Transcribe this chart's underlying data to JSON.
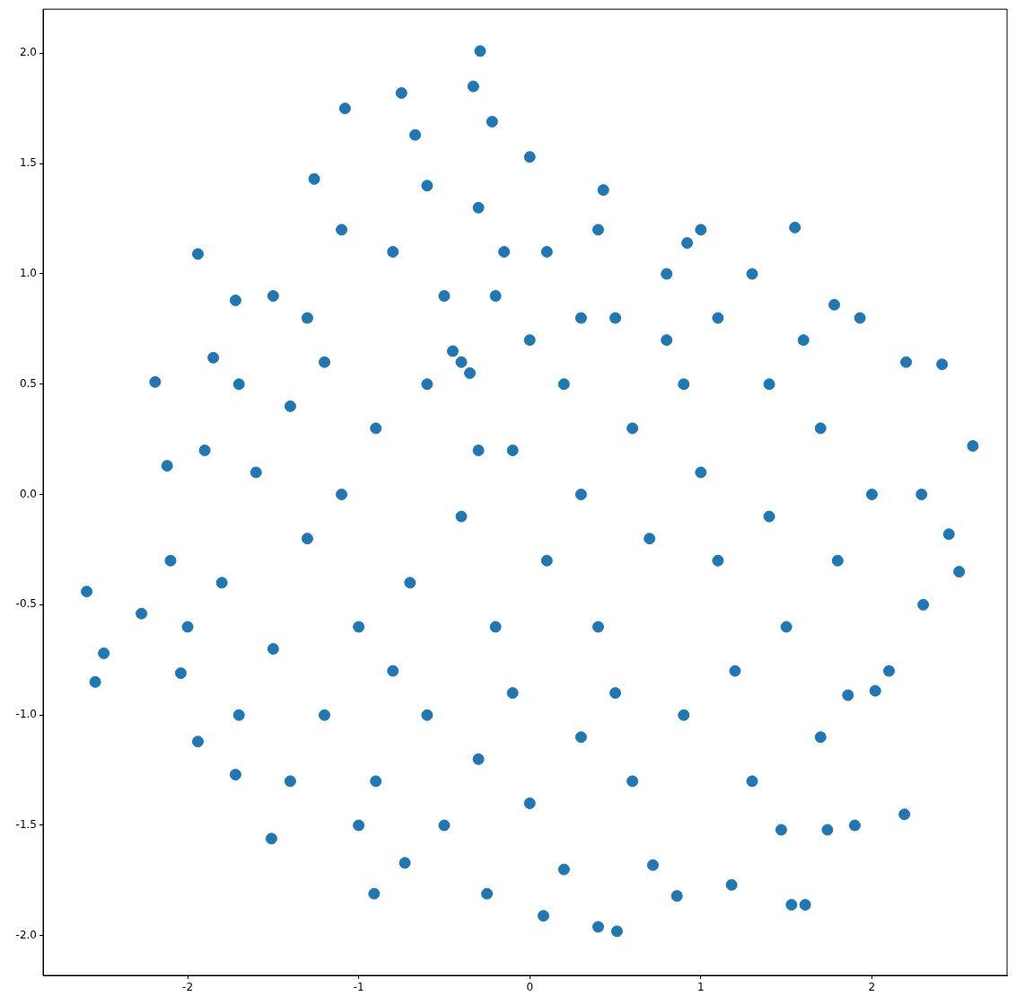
{
  "chart_data": {
    "type": "scatter",
    "color": "#1f77b4",
    "marker": "circle",
    "grid": false,
    "xlim": [
      -2.845,
      2.79
    ],
    "ylim": [
      -2.18,
      2.2
    ],
    "xticks": [
      -2,
      -1,
      0,
      1,
      2
    ],
    "yticks": [
      {
        "value": -2,
        "label": "-2.0"
      },
      {
        "value": -1.5,
        "label": "-1.5"
      },
      {
        "value": -1,
        "label": "-1.0"
      },
      {
        "value": -0.5,
        "label": "-0.5"
      },
      {
        "value": 0,
        "label": "0.0"
      },
      {
        "value": 0.5,
        "label": "0.5"
      },
      {
        "value": 1,
        "label": "1.0"
      },
      {
        "value": 1.5,
        "label": "1.5"
      },
      {
        "value": 2,
        "label": "2.0"
      }
    ],
    "x": [
      -2.59,
      -2.54,
      -2.49,
      -2.27,
      -2.19,
      -1.94,
      -1.94,
      -1.72,
      -1.08,
      -0.75,
      -0.33,
      -0.29,
      -0.22,
      0.0,
      1.55,
      2.41,
      2.59,
      2.51,
      2.45,
      2.29,
      2.19,
      1.74,
      1.61,
      1.53,
      1.18,
      0.51,
      0.4,
      0.08,
      -0.91,
      -0.25,
      -1.51,
      -1.72,
      -2.04,
      -2.12,
      -1.85,
      -1.26,
      -0.67,
      0.43,
      0.92,
      1.78,
      1.93,
      1.9,
      2.02,
      1.86,
      1.47,
      0.72,
      0.86,
      -0.73,
      -1.5,
      -1.2,
      -0.9,
      -1.6,
      -1.3,
      -1.8,
      -1.5,
      -1.2,
      -0.9,
      -0.6,
      -0.3,
      0.0,
      0.3,
      0.6,
      0.9,
      1.2,
      1.5,
      1.8,
      2.0,
      1.7,
      1.4,
      1.1,
      0.8,
      0.5,
      0.2,
      -0.1,
      -0.4,
      -0.7,
      -1.0,
      0.1,
      0.4,
      0.7,
      1.0,
      0.6,
      0.9,
      -0.5,
      -0.8,
      -1.1,
      -0.3,
      0.1,
      0.4,
      1.3,
      1.6,
      2.2,
      2.3,
      2.1,
      1.7,
      1.3,
      0.2,
      -0.5,
      -1.0,
      -1.4,
      -1.7,
      -2.0,
      -2.1,
      -1.9,
      -1.7,
      -1.4,
      -1.1,
      -0.8,
      -0.2,
      0.3,
      0.0,
      -0.2,
      -0.4,
      -0.3,
      -0.1,
      0.5,
      1.1,
      1.4,
      0.8,
      1.0,
      -0.6,
      -1.3,
      -0.6,
      0.3,
      -0.15,
      -0.45,
      -0.35
    ],
    "values": [
      -0.44,
      -0.85,
      -0.72,
      -0.54,
      0.51,
      1.09,
      -1.12,
      0.88,
      1.75,
      1.82,
      1.85,
      2.01,
      1.69,
      1.53,
      1.21,
      0.59,
      0.22,
      -0.35,
      -0.18,
      0.0,
      -1.45,
      -1.52,
      -1.86,
      -1.86,
      -1.77,
      -1.98,
      -1.96,
      -1.91,
      -1.81,
      -1.81,
      -1.56,
      -1.27,
      -0.81,
      0.13,
      0.62,
      1.43,
      1.63,
      1.38,
      1.14,
      0.86,
      0.8,
      -1.5,
      -0.89,
      -0.91,
      -1.52,
      -1.68,
      -1.82,
      -1.67,
      0.9,
      0.6,
      0.3,
      0.1,
      -0.2,
      -0.4,
      -0.7,
      -1.0,
      -1.3,
      -1.0,
      -1.2,
      -1.4,
      -1.1,
      -1.3,
      -1.0,
      -0.8,
      -0.6,
      -0.3,
      0.0,
      0.3,
      0.5,
      0.8,
      1.0,
      0.8,
      0.5,
      0.2,
      -0.1,
      -0.4,
      -0.6,
      -0.3,
      -0.6,
      -0.2,
      0.1,
      0.3,
      0.5,
      0.9,
      1.1,
      1.2,
      1.3,
      1.1,
      1.2,
      1.0,
      0.7,
      0.6,
      -0.5,
      -0.8,
      -1.1,
      -1.3,
      -1.7,
      -1.5,
      -1.5,
      -1.3,
      -1.0,
      -0.6,
      -0.3,
      0.2,
      0.5,
      0.4,
      0.0,
      -0.8,
      -0.6,
      0.0,
      0.7,
      0.9,
      0.6,
      0.2,
      -0.9,
      -0.9,
      -0.3,
      -0.1,
      0.7,
      1.2,
      1.4,
      0.8,
      0.5,
      0.8,
      1.1,
      0.65,
      0.55
    ]
  }
}
